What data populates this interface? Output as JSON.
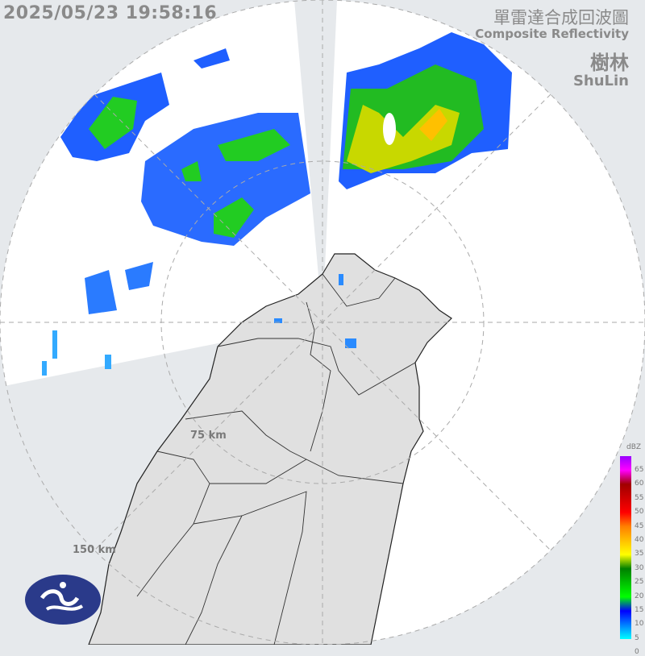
{
  "timestamp": "2025/05/23 19:58:16",
  "product": {
    "title_zh": "單雷達合成回波圖",
    "title_en": "Composite Reflectivity"
  },
  "station": {
    "name_zh": "樹林",
    "name_en": "ShuLin"
  },
  "range_rings": [
    "75 km",
    "150 km"
  ],
  "legend": {
    "unit": "dBZ",
    "ticks": [
      "65",
      "60",
      "55",
      "50",
      "45",
      "40",
      "35",
      "30",
      "25",
      "20",
      "15",
      "10",
      "5",
      "0"
    ],
    "colors": [
      "#00ffff",
      "#0080ff",
      "#0000ff",
      "#00ff00",
      "#00c000",
      "#008000",
      "#ffff00",
      "#ffc000",
      "#ff8000",
      "#ff0000",
      "#d00000",
      "#a00000",
      "#ff00ff",
      "#9900ff"
    ]
  },
  "logo": "cwa-logo"
}
